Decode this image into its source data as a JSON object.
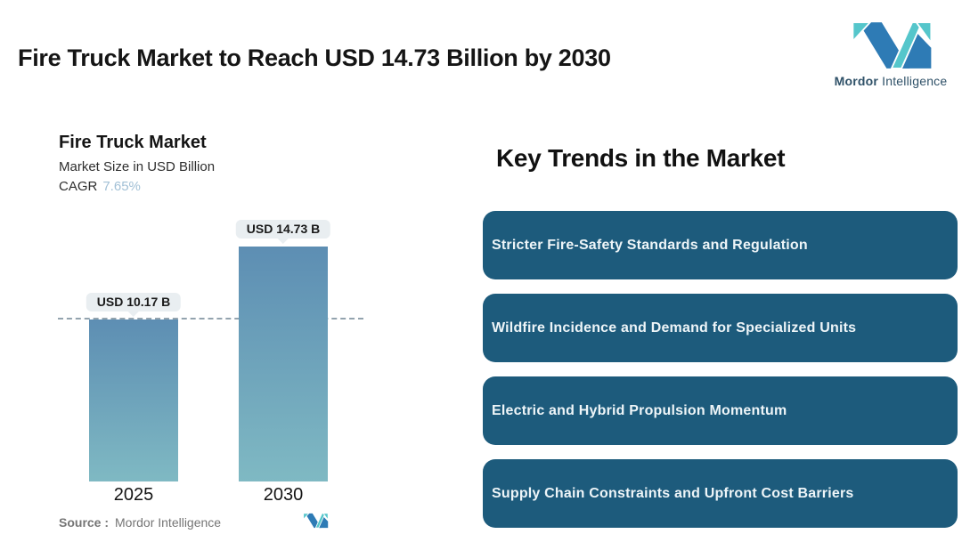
{
  "header": {
    "title": "Fire Truck Market to Reach USD 14.73 Billion by 2030",
    "logo": {
      "brand_bold": "Mordor",
      "brand_regular": "Intelligence"
    }
  },
  "chart": {
    "title": "Fire Truck Market",
    "subtitle": "Market Size in USD Billion",
    "cagr_label": "CAGR",
    "cagr_value": "7.65%",
    "source_label": "Source :",
    "source_value": "Mordor Intelligence"
  },
  "chart_data": {
    "type": "bar",
    "categories": [
      "2025",
      "2030"
    ],
    "values": [
      10.17,
      14.73
    ],
    "value_labels": [
      "USD 10.17 B",
      "USD 14.73 B"
    ],
    "title": "Fire Truck Market",
    "xlabel": "",
    "ylabel": "Market Size in USD Billion",
    "ylim": [
      0,
      16
    ],
    "grid": false,
    "legend": "none",
    "cagr_percent": 7.65,
    "reference_line_at_value": 10.17,
    "bar_gradient_top": "#5d8eb3",
    "bar_gradient_bottom": "#7fb9c3"
  },
  "trends": {
    "heading": "Key Trends in the Market",
    "card_color": "#1d5b7c",
    "items": [
      {
        "label": "Stricter Fire-Safety Standards and Regulation"
      },
      {
        "label": "Wildfire Incidence and Demand for Specialized Units"
      },
      {
        "label": "Electric and Hybrid Propulsion Momentum"
      },
      {
        "label": "Supply Chain Constraints and Upfront Cost Barriers"
      }
    ]
  },
  "colors": {
    "background": "#ffffff",
    "title_text": "#151515",
    "cagr_value": "#a2c0d6",
    "callout_bg": "#e9eef1",
    "dashed_line": "#93a3ae",
    "trend_card_bg": "#1d5b7c",
    "trend_card_text": "#eef5f8",
    "logo_blue": "#2e7bb5",
    "logo_teal": "#55c6cb",
    "source_text": "#757575"
  }
}
